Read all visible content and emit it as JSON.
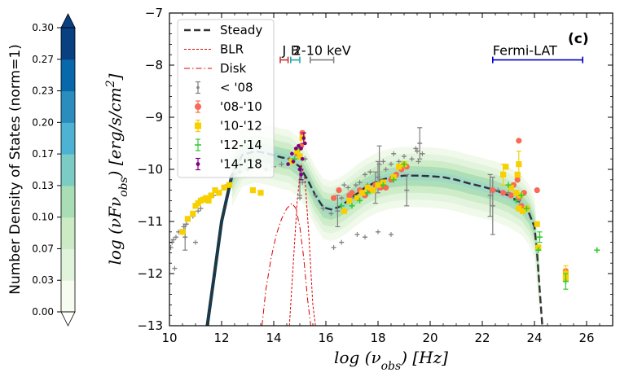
{
  "chart_data": {
    "type": "scatter",
    "panel_tag": "(c)",
    "xlabel_main": "log (ν",
    "xlabel_sub": "obs",
    "xlabel_unit": ")  [Hz]",
    "ylabel_main": "log (νFν",
    "ylabel_sub": "obs",
    "ylabel_unit": ")  [erg/s/cm",
    "ylabel_sup": "2",
    "ylabel_close": "]",
    "xlim": [
      10,
      27
    ],
    "ylim": [
      -13,
      -7
    ],
    "xticks": [
      10,
      12,
      14,
      16,
      18,
      20,
      22,
      24,
      26
    ],
    "yticks": [
      -13,
      -12,
      -11,
      -10,
      -9,
      -8,
      -7
    ],
    "colorbar": {
      "label": "Number Density of States (norm=1)",
      "ticks": [
        "0.00",
        "0.03",
        "0.07",
        "0.10",
        "0.13",
        "0.17",
        "0.20",
        "0.23",
        "0.27",
        "0.30"
      ],
      "colors": [
        "#f7fcf0",
        "#e0f3db",
        "#ccebc5",
        "#a8ddb5",
        "#7bccc4",
        "#4eb3d3",
        "#2b8cbe",
        "#0868ac",
        "#084081"
      ],
      "extend_color": "#084081"
    },
    "legend": [
      {
        "label": "Steady",
        "style": "dashed",
        "color": "#333333"
      },
      {
        "label": "BLR",
        "style": "dashed-thin",
        "color": "#dd0000"
      },
      {
        "label": "Disk",
        "style": "dashdot",
        "color": "#dd0000"
      },
      {
        "label": "< '08",
        "style": "errorbar",
        "color": "#808080"
      },
      {
        "label": "'08-'10",
        "style": "marker",
        "color": "#f86a55"
      },
      {
        "label": "'10-'12",
        "style": "marker",
        "color": "#f8d000"
      },
      {
        "label": "'12-'14",
        "style": "marker",
        "color": "#33cc33"
      },
      {
        "label": "'14-'18",
        "style": "marker",
        "color": "#800080"
      }
    ],
    "bands": [
      {
        "label": "J",
        "x": [
          14.25,
          14.55
        ],
        "y": -7.9,
        "color": "#cc3333"
      },
      {
        "label": "B",
        "x": [
          14.65,
          15.0
        ],
        "y": -7.9,
        "color": "#22aaaa"
      },
      {
        "label": "2-10 keV",
        "x": [
          15.4,
          16.3
        ],
        "y": -7.9,
        "color": "#808080"
      },
      {
        "label": "Fermi-LAT",
        "x": [
          22.4,
          25.85
        ],
        "y": -7.9,
        "color": "#0000cc"
      }
    ],
    "steady_model": {
      "x": [
        11.45,
        11.7,
        12.0,
        12.4,
        12.8,
        13.3,
        13.8,
        14.3,
        14.6,
        15.0,
        15.3,
        15.6,
        15.9,
        16.2,
        16.5,
        16.8,
        17.1,
        17.5,
        18.0,
        18.5,
        19.0,
        19.5,
        20.0,
        20.5,
        21.0,
        21.5,
        22.0,
        22.5,
        23.0,
        23.5,
        23.8,
        24.0,
        24.1,
        24.2,
        24.3
      ],
      "y": [
        -13.0,
        -12.1,
        -11.0,
        -10.1,
        -9.72,
        -9.65,
        -9.7,
        -9.77,
        -9.8,
        -9.95,
        -10.2,
        -10.5,
        -10.73,
        -10.77,
        -10.72,
        -10.62,
        -10.5,
        -10.35,
        -10.22,
        -10.15,
        -10.12,
        -10.12,
        -10.13,
        -10.15,
        -10.2,
        -10.27,
        -10.33,
        -10.4,
        -10.5,
        -10.65,
        -10.85,
        -11.1,
        -11.6,
        -12.3,
        -13.0
      ]
    },
    "blr_model": {
      "x": [
        14.6,
        14.75,
        14.9,
        15.05,
        15.2,
        15.35,
        15.5,
        15.6
      ],
      "y": [
        -13.0,
        -11.8,
        -10.6,
        -9.9,
        -10.2,
        -11.3,
        -12.6,
        -13.0
      ]
    },
    "disk_model": {
      "x": [
        13.55,
        13.7,
        13.9,
        14.1,
        14.3,
        14.5,
        14.7,
        14.85,
        15.0,
        15.15,
        15.3,
        15.42
      ],
      "y": [
        -13.0,
        -12.3,
        -11.7,
        -11.25,
        -10.95,
        -10.75,
        -10.65,
        -10.75,
        -11.1,
        -11.7,
        -12.5,
        -13.0
      ]
    },
    "series": [
      {
        "name": "< '08",
        "color": "#808080",
        "points": [
          [
            10.05,
            -11.5
          ],
          [
            10.1,
            -11.4
          ],
          [
            10.15,
            -11.35
          ],
          [
            10.25,
            -11.3
          ],
          [
            10.35,
            -11.2
          ],
          [
            10.45,
            -11.2
          ],
          [
            10.55,
            -11.1
          ],
          [
            10.65,
            -11.05
          ],
          [
            10.6,
            -11.3
          ],
          [
            10.9,
            -10.9
          ],
          [
            11.1,
            -10.8
          ],
          [
            11.2,
            -10.75
          ],
          [
            11.5,
            -10.6
          ],
          [
            11.7,
            -10.5
          ],
          [
            10.2,
            -11.9
          ],
          [
            12.35,
            -10.15
          ],
          [
            12.5,
            -10.1
          ],
          [
            12.7,
            -10.05
          ],
          [
            13.0,
            -10.0
          ],
          [
            13.4,
            -9.95
          ],
          [
            13.7,
            -10.0
          ],
          [
            14.0,
            -9.95
          ],
          [
            14.3,
            -9.9
          ],
          [
            14.6,
            -9.8
          ],
          [
            14.8,
            -9.8
          ],
          [
            15.0,
            -9.75
          ],
          [
            15.2,
            -9.8
          ],
          [
            15.6,
            -10.5
          ],
          [
            15.9,
            -10.75
          ],
          [
            16.2,
            -10.85
          ],
          [
            16.45,
            -10.8
          ],
          [
            16.6,
            -10.55
          ],
          [
            16.7,
            -10.3
          ],
          [
            16.85,
            -10.35
          ],
          [
            17.0,
            -10.55
          ],
          [
            17.15,
            -10.3
          ],
          [
            17.3,
            -10.25
          ],
          [
            17.5,
            -10.1
          ],
          [
            17.6,
            -10.3
          ],
          [
            17.7,
            -10.05
          ],
          [
            17.9,
            -10.35
          ],
          [
            18.0,
            -10.15
          ],
          [
            18.05,
            -9.9
          ],
          [
            18.2,
            -9.85
          ],
          [
            18.3,
            -10.0
          ],
          [
            18.5,
            -9.9
          ],
          [
            18.6,
            -9.7
          ],
          [
            18.8,
            -9.85
          ],
          [
            19.0,
            -9.75
          ],
          [
            19.1,
            -10.4
          ],
          [
            19.3,
            -9.8
          ],
          [
            19.5,
            -9.65
          ],
          [
            19.6,
            -9.5
          ],
          [
            19.7,
            -9.7
          ],
          [
            19.45,
            -9.6
          ],
          [
            19.55,
            -9.85
          ],
          [
            17.5,
            -11.3
          ],
          [
            18.0,
            -11.2
          ],
          [
            18.5,
            -11.25
          ],
          [
            16.3,
            -11.5
          ],
          [
            16.6,
            -11.4
          ],
          [
            17.2,
            -11.25
          ],
          [
            15.0,
            -10.55
          ],
          [
            15.1,
            -10.25
          ],
          [
            22.3,
            -10.5
          ],
          [
            22.4,
            -10.7
          ],
          [
            22.6,
            -10.4
          ],
          [
            23.0,
            -10.45
          ],
          [
            23.4,
            -10.6
          ],
          [
            11.0,
            -11.4
          ],
          [
            12.2,
            -10.3
          ]
        ],
        "errors": [
          [
            10.6,
            -11.3,
            0.25
          ],
          [
            15.0,
            -10.25,
            0.25
          ],
          [
            16.45,
            -10.8,
            0.3
          ],
          [
            17.9,
            -10.35,
            0.3
          ],
          [
            18.05,
            -9.9,
            0.35
          ],
          [
            19.1,
            -10.4,
            0.3
          ],
          [
            19.6,
            -9.5,
            0.3
          ],
          [
            22.4,
            -10.7,
            0.55
          ],
          [
            22.3,
            -10.5,
            0.4
          ],
          [
            18.0,
            -10.15,
            0.3
          ]
        ]
      },
      {
        "name": "'08-'10",
        "color": "#f86a55",
        "points": [
          [
            14.9,
            -9.7
          ],
          [
            15.1,
            -9.3
          ],
          [
            15.05,
            -9.55
          ],
          [
            16.9,
            -10.5
          ],
          [
            17.0,
            -10.45
          ],
          [
            17.3,
            -10.4
          ],
          [
            17.5,
            -10.5
          ],
          [
            17.7,
            -10.4
          ],
          [
            17.9,
            -10.3
          ],
          [
            18.1,
            -10.35
          ],
          [
            18.3,
            -10.35
          ],
          [
            18.5,
            -10.2
          ],
          [
            18.7,
            -10.1
          ],
          [
            18.9,
            -10.0
          ],
          [
            19.1,
            -9.95
          ],
          [
            16.5,
            -10.4
          ],
          [
            16.3,
            -10.55
          ],
          [
            22.4,
            -10.4
          ],
          [
            22.8,
            -10.45
          ],
          [
            23.1,
            -10.5
          ],
          [
            23.4,
            -10.55
          ],
          [
            23.5,
            -10.7
          ],
          [
            23.6,
            -10.45
          ],
          [
            23.2,
            -10.3
          ],
          [
            23.35,
            -10.2
          ],
          [
            25.2,
            -11.95
          ],
          [
            23.4,
            -9.45
          ],
          [
            24.1,
            -10.4
          ]
        ]
      },
      {
        "name": "'10-'12",
        "color": "#f8d000",
        "points": [
          [
            10.5,
            -11.2
          ],
          [
            10.7,
            -10.95
          ],
          [
            10.9,
            -10.85
          ],
          [
            11.0,
            -10.7
          ],
          [
            11.1,
            -10.65
          ],
          [
            11.2,
            -10.6
          ],
          [
            11.3,
            -10.58
          ],
          [
            11.4,
            -10.55
          ],
          [
            11.5,
            -10.6
          ],
          [
            11.6,
            -10.5
          ],
          [
            11.75,
            -10.4
          ],
          [
            11.9,
            -10.45
          ],
          [
            12.1,
            -10.35
          ],
          [
            12.3,
            -10.3
          ],
          [
            13.2,
            -10.4
          ],
          [
            13.5,
            -10.45
          ],
          [
            14.7,
            -9.85
          ],
          [
            14.9,
            -9.65
          ],
          [
            15.1,
            -9.4
          ],
          [
            15.0,
            -9.75
          ],
          [
            16.9,
            -10.6
          ],
          [
            17.2,
            -10.55
          ],
          [
            17.4,
            -10.45
          ],
          [
            17.6,
            -10.35
          ],
          [
            17.8,
            -10.4
          ],
          [
            18.0,
            -10.3
          ],
          [
            18.2,
            -10.25
          ],
          [
            18.6,
            -10.15
          ],
          [
            18.8,
            -9.95
          ],
          [
            19.0,
            -9.9
          ],
          [
            22.8,
            -10.1
          ],
          [
            22.9,
            -9.95
          ],
          [
            23.1,
            -10.35
          ],
          [
            23.35,
            -10.1
          ],
          [
            23.4,
            -9.9
          ],
          [
            23.45,
            -10.5
          ],
          [
            23.55,
            -10.8
          ],
          [
            23.3,
            -10.45
          ],
          [
            23.4,
            -10.75
          ],
          [
            24.1,
            -11.05
          ],
          [
            24.15,
            -11.5
          ],
          [
            25.2,
            -12.0
          ],
          [
            25.2,
            -12.1
          ],
          [
            23.7,
            -10.75
          ],
          [
            16.7,
            -10.8
          ]
        ],
        "errors": [
          [
            25.2,
            -12.0,
            0.15
          ],
          [
            23.4,
            -9.9,
            0.25
          ],
          [
            22.8,
            -10.1,
            0.2
          ]
        ]
      },
      {
        "name": "'12-'14",
        "color": "#33cc33",
        "points": [
          [
            14.8,
            -9.8
          ],
          [
            15.0,
            -9.6
          ],
          [
            17.0,
            -10.7
          ],
          [
            17.3,
            -10.6
          ],
          [
            17.6,
            -10.45
          ],
          [
            18.2,
            -10.3
          ],
          [
            18.6,
            -10.2
          ],
          [
            19.0,
            -9.9
          ],
          [
            23.0,
            -10.3
          ],
          [
            23.3,
            -10.6
          ],
          [
            23.5,
            -10.5
          ],
          [
            23.7,
            -10.75
          ],
          [
            24.2,
            -11.3
          ],
          [
            24.15,
            -11.55
          ],
          [
            25.2,
            -12.15
          ],
          [
            26.4,
            -11.55
          ],
          [
            16.6,
            -10.7
          ]
        ],
        "errors": [
          [
            25.2,
            -12.15,
            0.15
          ],
          [
            24.2,
            -11.3,
            0.1
          ]
        ]
      },
      {
        "name": "'14-'18",
        "color": "#800080",
        "points": [
          [
            14.55,
            -9.9
          ],
          [
            14.7,
            -9.7
          ],
          [
            14.85,
            -9.6
          ],
          [
            14.95,
            -9.55
          ],
          [
            15.05,
            -9.6
          ],
          [
            15.1,
            -9.8
          ],
          [
            15.15,
            -9.4
          ],
          [
            15.2,
            -9.5
          ],
          [
            15.0,
            -10.0
          ],
          [
            15.05,
            -10.1
          ],
          [
            14.75,
            -9.85
          ]
        ],
        "errors": [
          [
            15.05,
            -10.1,
            0.1
          ],
          [
            15.15,
            -9.4,
            0.1
          ]
        ]
      }
    ]
  }
}
